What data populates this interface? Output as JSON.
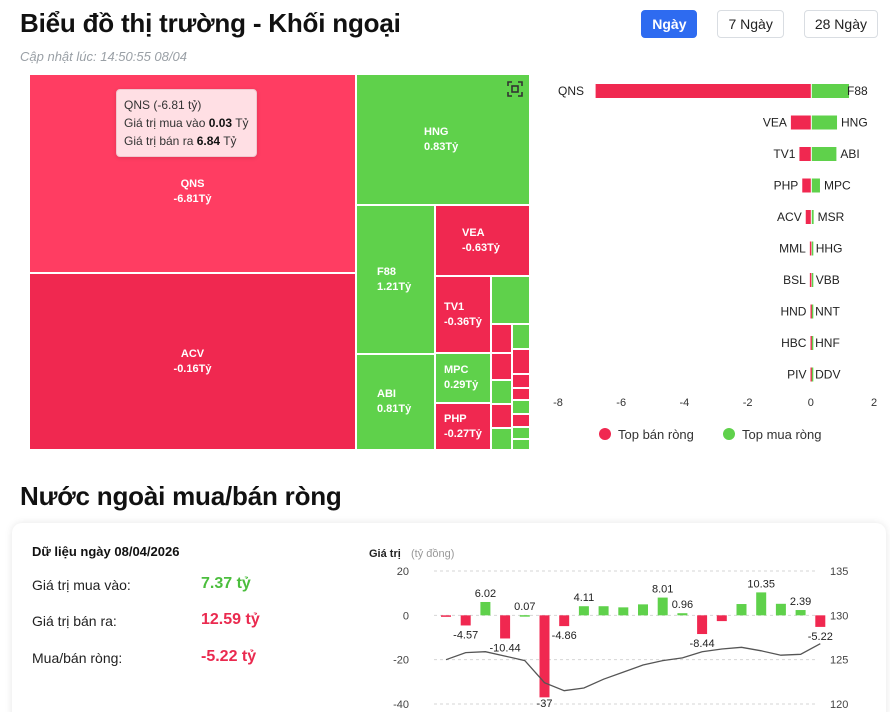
{
  "header": {
    "title": "Biểu đồ thị trường - Khối ngoại",
    "updated": "Cập nhật lúc: 14:50:55 08/04",
    "tabs": [
      {
        "label": "Ngày",
        "active": true
      },
      {
        "label": "7 Ngày",
        "active": false
      },
      {
        "label": "28 Ngày",
        "active": false
      }
    ]
  },
  "treemap": {
    "icon": "expand-icon",
    "tiles": [
      {
        "ticker": "QNS",
        "value": "-6.81Tỷ"
      },
      {
        "ticker": "ACV",
        "value": "-0.16Tỷ"
      },
      {
        "ticker": "HNG",
        "value": "0.83Tỷ"
      },
      {
        "ticker": "F88",
        "value": "1.21Tỷ"
      },
      {
        "ticker": "ABI",
        "value": "0.81Tỷ"
      },
      {
        "ticker": "VEA",
        "value": "-0.63Tỷ"
      },
      {
        "ticker": "TV1",
        "value": "-0.36Tỷ"
      },
      {
        "ticker": "MPC",
        "value": "0.29Tỷ"
      },
      {
        "ticker": "PHP",
        "value": "-0.27Tỷ"
      }
    ],
    "tooltip": {
      "title": "QNS (-6.81 tỷ)",
      "buy_label": "Giá trị mua vào",
      "buy_value": "0.03",
      "buy_unit": "Tỷ",
      "sell_label": "Giá trị bán ra",
      "sell_value": "6.84",
      "sell_unit": "Tỷ"
    }
  },
  "chart_data": [
    {
      "type": "bar",
      "orientation": "horizontal",
      "rows": [
        {
          "sell": "QNS",
          "sell_value": -6.81,
          "buy": "F88",
          "buy_value": 1.21
        },
        {
          "sell": "VEA",
          "sell_value": -0.63,
          "buy": "HNG",
          "buy_value": 0.83
        },
        {
          "sell": "TV1",
          "sell_value": -0.36,
          "buy": "ABI",
          "buy_value": 0.81
        },
        {
          "sell": "PHP",
          "sell_value": -0.27,
          "buy": "MPC",
          "buy_value": 0.29
        },
        {
          "sell": "ACV",
          "sell_value": -0.16,
          "buy": "MSR",
          "buy_value": 0.09
        },
        {
          "sell": "MML",
          "sell_value": -0.03,
          "buy": "HHG",
          "buy_value": 0.03
        },
        {
          "sell": "BSL",
          "sell_value": -0.03,
          "buy": "VBB",
          "buy_value": 0.03
        },
        {
          "sell": "HND",
          "sell_value": -0.01,
          "buy": "NNT",
          "buy_value": 0.01
        },
        {
          "sell": "HBC",
          "sell_value": -0.01,
          "buy": "HNF",
          "buy_value": 0.01
        },
        {
          "sell": "PIV",
          "sell_value": -0.01,
          "buy": "DDV",
          "buy_value": 0.01
        }
      ],
      "xlim": [
        -8,
        2
      ],
      "xticks": [
        -8,
        -6,
        -4,
        -2,
        0,
        2
      ],
      "legend": [
        {
          "label": "Top bán ròng",
          "color": "#f02850"
        },
        {
          "label": "Top mua ròng",
          "color": "#5fd14b"
        }
      ]
    },
    {
      "type": "bar",
      "ylabel": "Giá trị",
      "yunit": "(tỷ đồng)",
      "ylim": [
        -40,
        20
      ],
      "yticks": [
        20,
        0,
        -20,
        -40
      ],
      "y2lim": [
        120,
        135
      ],
      "y2ticks": [
        135,
        130,
        125,
        120
      ],
      "values": [
        -0.3,
        -4.57,
        6.02,
        -10.44,
        0.07,
        -37,
        -4.86,
        4.11,
        4.11,
        3.6,
        4.95,
        8.01,
        0.96,
        -8.44,
        -2.6,
        5.1,
        10.35,
        5.2,
        2.39,
        -5.22
      ],
      "labels": [
        "",
        "-4.57",
        "6.02",
        "-10.44",
        "0.07",
        "-37",
        "-4.86",
        "4.11",
        "",
        "",
        "",
        "8.01",
        "0.96",
        "-8.44",
        "",
        "",
        "10.35",
        "",
        "2.39",
        "-5.22"
      ],
      "line": [
        125.0,
        125.8,
        125.9,
        125.4,
        124.9,
        122.4,
        121.5,
        121.8,
        122.8,
        123.6,
        124.4,
        124.9,
        125.2,
        125.9,
        126.2,
        126.4,
        126.0,
        125.5,
        125.6,
        126.8
      ]
    }
  ],
  "net_section": {
    "title": "Nước ngoài mua/bán ròng",
    "date_label": "Dữ liệu ngày 08/04/2026",
    "rows": [
      {
        "label": "Giá trị mua vào:",
        "value": "7.37 tỷ",
        "tone": "pos"
      },
      {
        "label": "Giá trị bán ra:",
        "value": "12.59 tỷ",
        "tone": "neg"
      },
      {
        "label": "Mua/bán ròng:",
        "value": "-5.22 tỷ",
        "tone": "neg"
      }
    ]
  },
  "colors": {
    "primary": "#2e6bf0",
    "sell": "#f02850",
    "buy": "#5fd14b",
    "line": "#555555"
  }
}
